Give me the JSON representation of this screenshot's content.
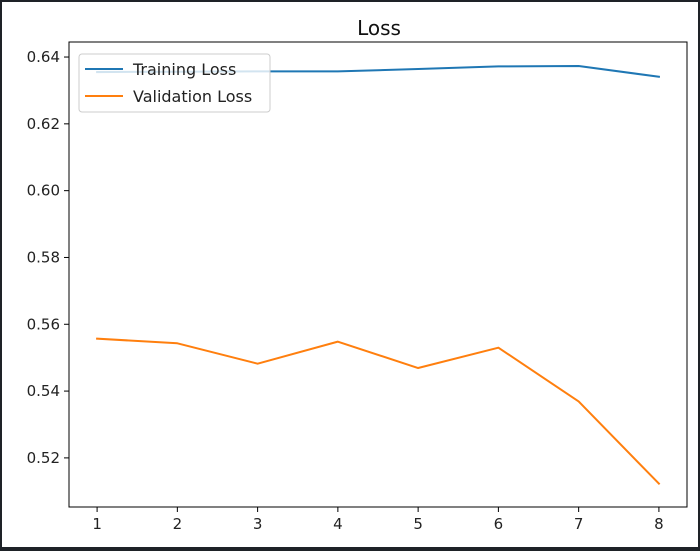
{
  "chart_data": {
    "type": "line",
    "title": "Loss",
    "xlabel": "",
    "ylabel": "",
    "x": [
      1,
      2,
      3,
      4,
      5,
      6,
      7,
      8
    ],
    "xlim": [
      0.65,
      8.35
    ],
    "ylim": [
      0.5053,
      0.6445
    ],
    "xticks": [
      1,
      2,
      3,
      4,
      5,
      6,
      7,
      8
    ],
    "xtick_labels": [
      "1",
      "2",
      "3",
      "4",
      "5",
      "6",
      "7",
      "8"
    ],
    "yticks": [
      0.52,
      0.54,
      0.56,
      0.58,
      0.6,
      0.62,
      0.64
    ],
    "ytick_labels": [
      "0.52",
      "0.54",
      "0.56",
      "0.58",
      "0.60",
      "0.62",
      "0.64"
    ],
    "grid": false,
    "legend_position": "top-left",
    "series": [
      {
        "name": "Training Loss",
        "color": "#1f77b4",
        "values": [
          0.6355,
          0.6356,
          0.6357,
          0.6357,
          0.6364,
          0.6372,
          0.6373,
          0.6341
        ]
      },
      {
        "name": "Validation Loss",
        "color": "#ff7f0e",
        "values": [
          0.5557,
          0.5543,
          0.5482,
          0.5548,
          0.5469,
          0.553,
          0.5369,
          0.5123
        ]
      }
    ]
  }
}
